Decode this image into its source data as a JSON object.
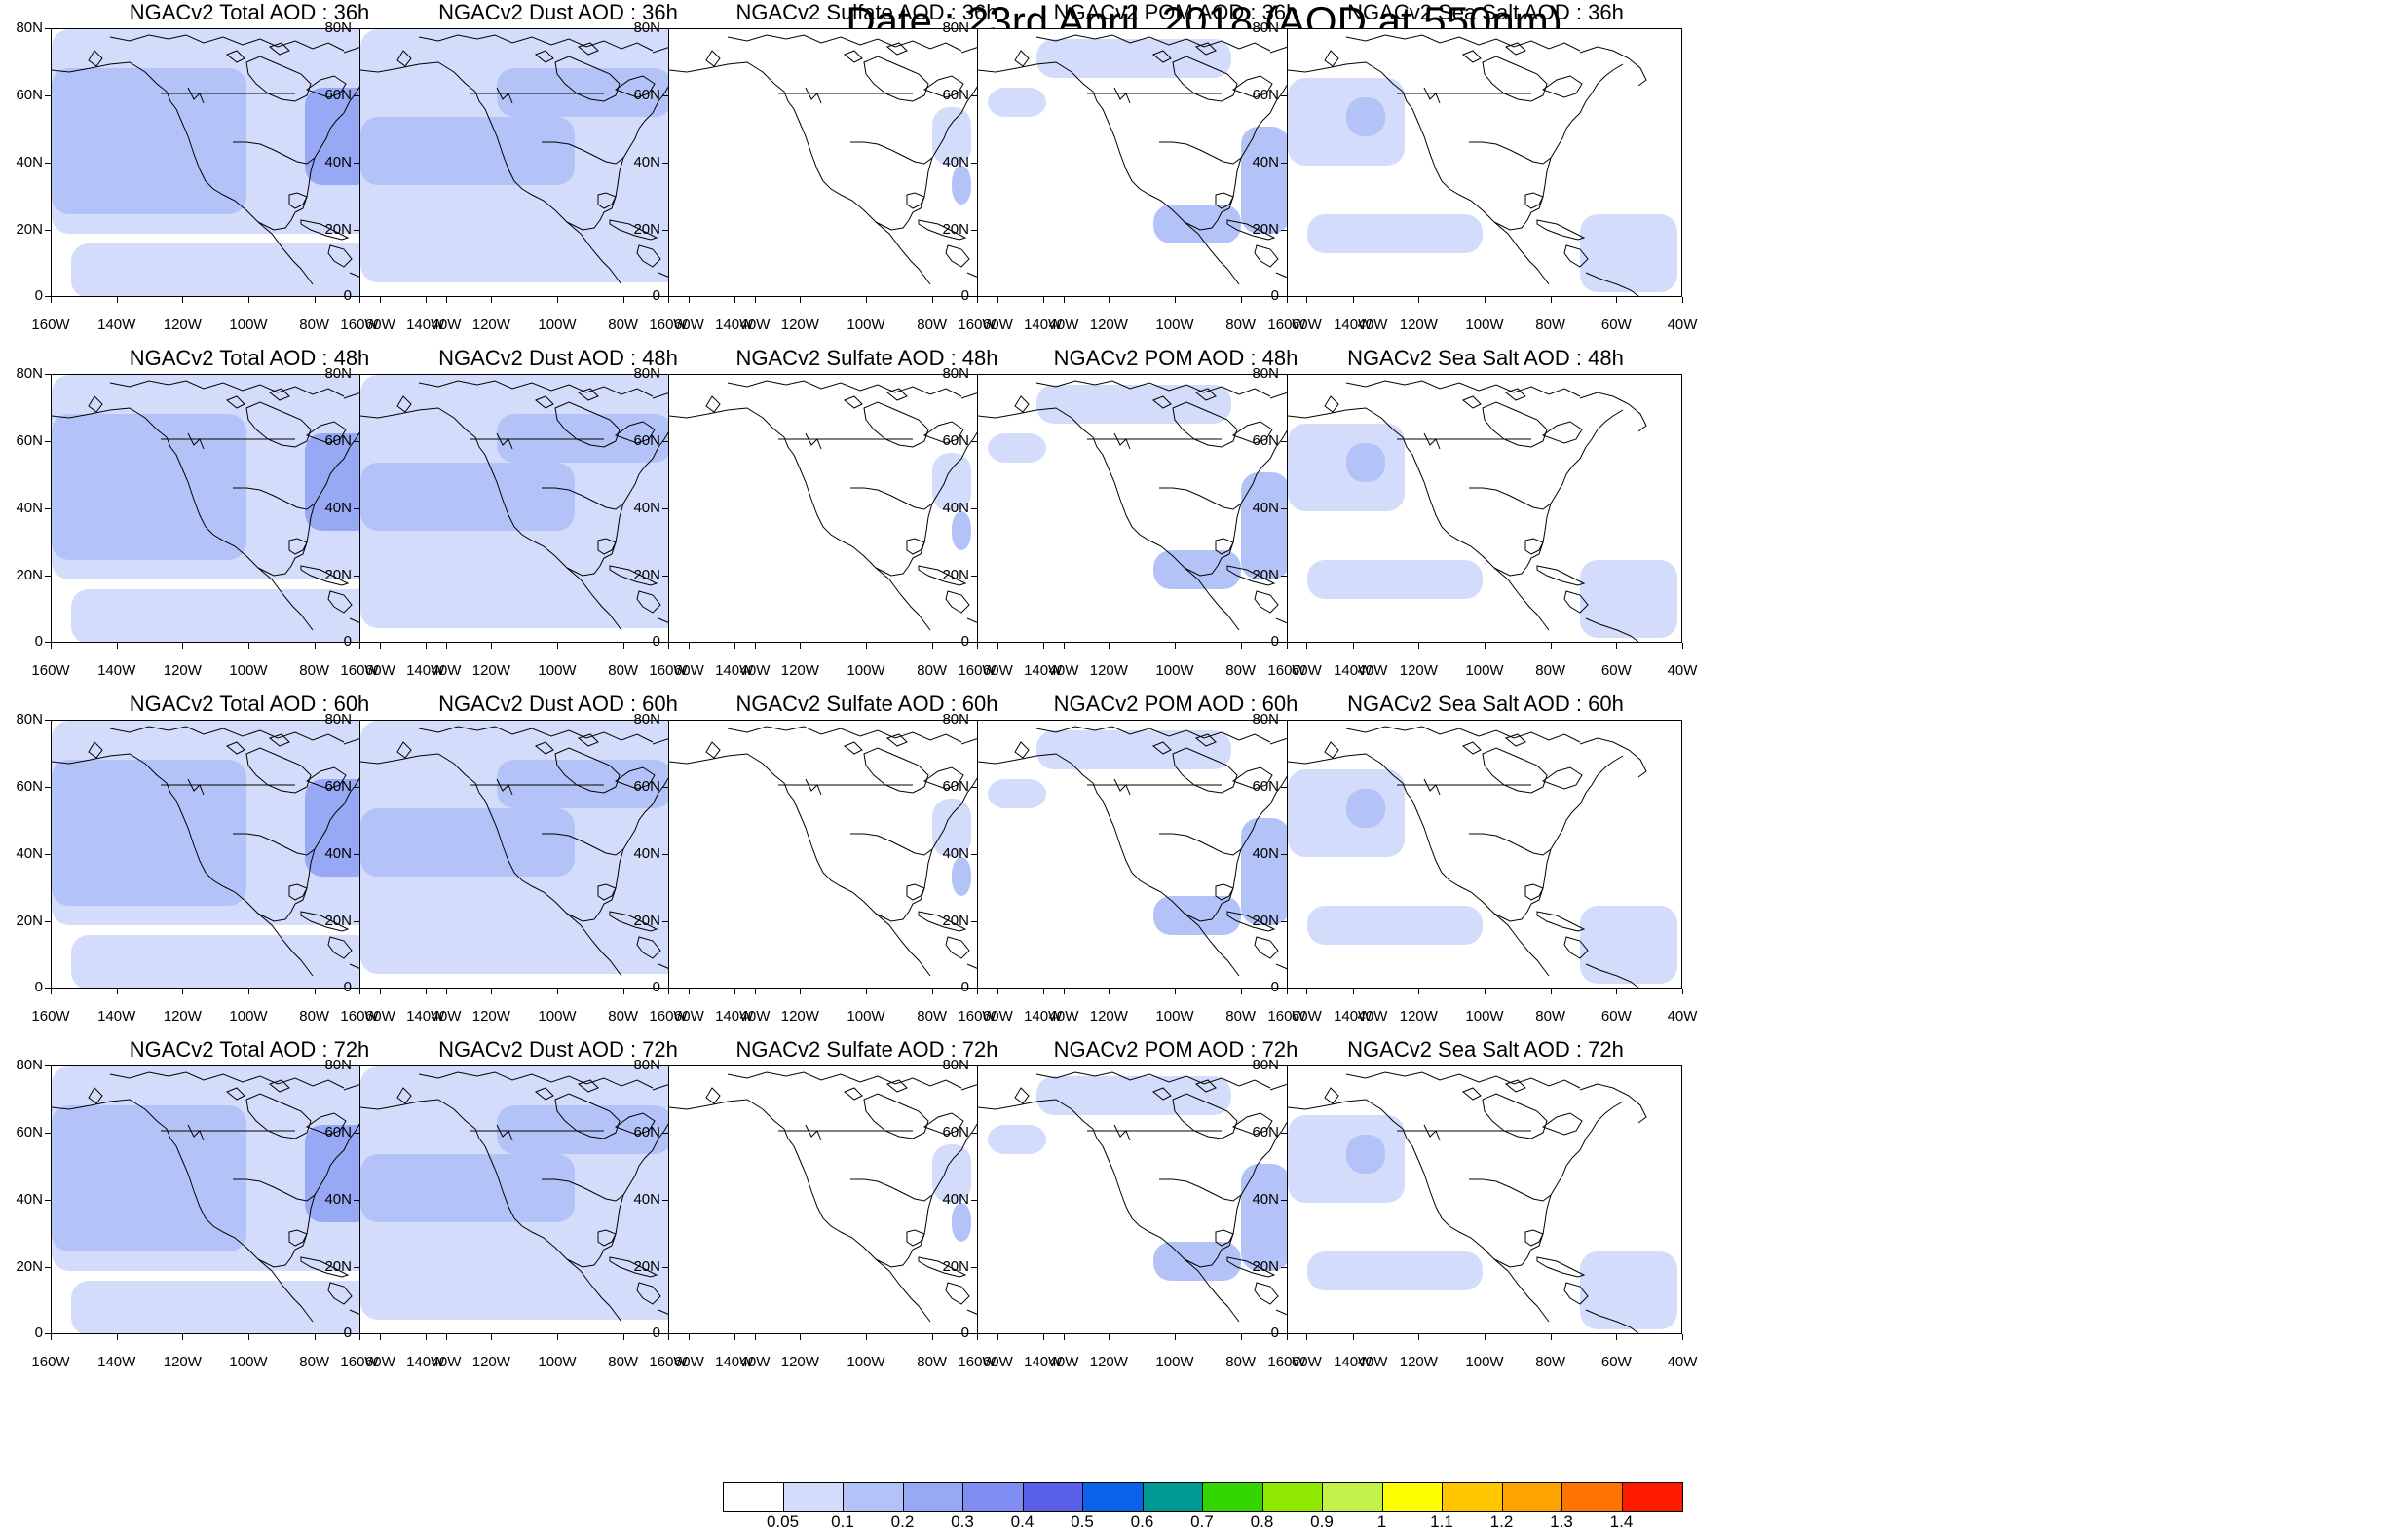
{
  "title": "Date : 23rd April, 2018 (AOD at 550nm)",
  "panels": [
    {
      "title": "NGACv2 Total AOD : 36h",
      "field": "total"
    },
    {
      "title": "NGACv2 Dust AOD : 36h",
      "field": "dust"
    },
    {
      "title": "NGACv2 Sulfate AOD : 36h",
      "field": "sulfate"
    },
    {
      "title": "NGACv2 POM AOD : 36h",
      "field": "pom"
    },
    {
      "title": "NGACv2 Sea Salt AOD : 36h",
      "field": "seasalt"
    },
    {
      "title": "NGACv2 Total AOD : 48h",
      "field": "total"
    },
    {
      "title": "NGACv2 Dust AOD : 48h",
      "field": "dust"
    },
    {
      "title": "NGACv2 Sulfate AOD : 48h",
      "field": "sulfate"
    },
    {
      "title": "NGACv2 POM AOD : 48h",
      "field": "pom"
    },
    {
      "title": "NGACv2 Sea Salt AOD : 48h",
      "field": "seasalt"
    },
    {
      "title": "NGACv2 Total AOD : 60h",
      "field": "total"
    },
    {
      "title": "NGACv2 Dust AOD : 60h",
      "field": "dust"
    },
    {
      "title": "NGACv2 Sulfate AOD : 60h",
      "field": "sulfate"
    },
    {
      "title": "NGACv2 POM AOD : 60h",
      "field": "pom"
    },
    {
      "title": "NGACv2 Sea Salt AOD : 60h",
      "field": "seasalt"
    },
    {
      "title": "NGACv2 Total AOD : 72h",
      "field": "total"
    },
    {
      "title": "NGACv2 Dust AOD : 72h",
      "field": "dust"
    },
    {
      "title": "NGACv2 Sulfate AOD : 72h",
      "field": "sulfate"
    },
    {
      "title": "NGACv2 POM AOD : 72h",
      "field": "pom"
    },
    {
      "title": "NGACv2 Sea Salt  AOD : 72h",
      "field": "seasalt"
    }
  ],
  "lat_labels": [
    "80N",
    "60N",
    "40N",
    "20N",
    "0"
  ],
  "lon_labels": [
    "160W",
    "140W",
    "120W",
    "100W",
    "80W",
    "60W",
    "40W"
  ],
  "colorbar": {
    "levels": [
      "0.05",
      "0.1",
      "0.2",
      "0.3",
      "0.4",
      "0.5",
      "0.6",
      "0.7",
      "0.8",
      "0.9",
      "1",
      "1.1",
      "1.2",
      "1.3",
      "1.4"
    ],
    "colors": [
      "#ffffff",
      "#d3dcfa",
      "#b4c3f7",
      "#97a9f5",
      "#7f8ef0",
      "#5a5fe8",
      "#0a63e8",
      "#009a94",
      "#33d600",
      "#8ee800",
      "#c4f04a",
      "#ffff00",
      "#ffc600",
      "#ffa300",
      "#ff7300",
      "#ff1a00"
    ]
  }
}
